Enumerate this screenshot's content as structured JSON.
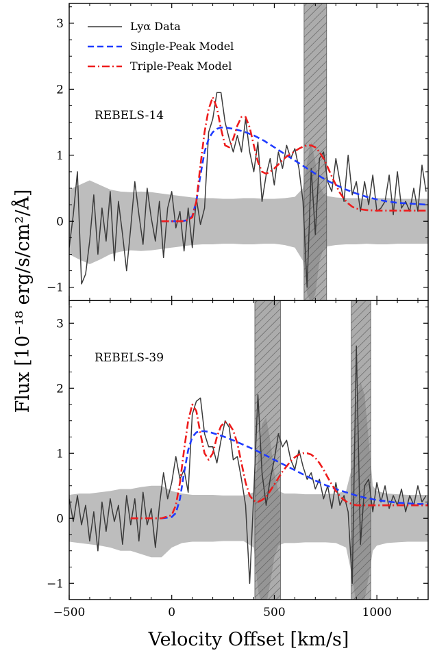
{
  "figure": {
    "ylabel": "Flux [10⁻¹⁸ erg/s/cm²/Å]",
    "xlabel": "Velocity Offset [km/s]"
  },
  "legend": [
    {
      "label": "Lyα Data",
      "color": "#3a3a3a",
      "style": "solid"
    },
    {
      "label": "Single-Peak Model",
      "color": "#1f3bff",
      "style": "dashed"
    },
    {
      "label": "Triple-Peak Model",
      "color": "#ee1c1c",
      "style": "dashdot"
    }
  ],
  "colors": {
    "data": "#3a3a3a",
    "single": "#1f3bff",
    "triple": "#ee1c1c",
    "noise_band": "#bdbdbd",
    "masked_band": "#808080"
  },
  "chart_data": [
    {
      "type": "line",
      "label": "REBELS-14",
      "xlim": [
        -500,
        1250
      ],
      "ylim": [
        -1.2,
        3.3
      ],
      "yticks": [
        -1,
        0,
        1,
        2,
        3
      ],
      "xticks": [
        -500,
        0,
        500,
        1000
      ],
      "legend_position": "top-left",
      "masked_regions": [
        [
          645,
          755
        ]
      ],
      "noise_band": {
        "x": [
          -500,
          -450,
          -400,
          -350,
          -300,
          -250,
          -200,
          -150,
          -100,
          -50,
          0,
          50,
          100,
          150,
          200,
          250,
          300,
          350,
          400,
          450,
          500,
          550,
          600,
          640,
          660,
          680,
          700,
          720,
          740,
          760,
          800,
          850,
          900,
          950,
          1000,
          1050,
          1100,
          1150,
          1200,
          1250
        ],
        "upper": [
          0.48,
          0.55,
          0.62,
          0.55,
          0.48,
          0.45,
          0.44,
          0.45,
          0.44,
          0.42,
          0.4,
          0.38,
          0.36,
          0.35,
          0.35,
          0.34,
          0.34,
          0.35,
          0.35,
          0.34,
          0.34,
          0.35,
          0.37,
          0.5,
          0.9,
          1.2,
          0.9,
          0.55,
          0.42,
          0.38,
          0.36,
          0.35,
          0.35,
          0.34,
          0.35,
          0.35,
          0.34,
          0.34,
          0.34,
          0.34
        ],
        "lower": [
          -0.5,
          -0.58,
          -0.65,
          -0.58,
          -0.5,
          -0.46,
          -0.44,
          -0.45,
          -0.44,
          -0.42,
          -0.4,
          -0.38,
          -0.36,
          -0.35,
          -0.35,
          -0.34,
          -0.34,
          -0.35,
          -0.35,
          -0.34,
          -0.34,
          -0.36,
          -0.4,
          -0.6,
          -1.1,
          -1.25,
          -1.1,
          -0.6,
          -0.42,
          -0.38,
          -0.36,
          -0.35,
          -0.35,
          -0.34,
          -0.35,
          -0.35,
          -0.34,
          -0.34,
          -0.34,
          -0.34
        ]
      },
      "series": [
        {
          "name": "Lyα Data",
          "style": "solid",
          "x": [
            -500,
            -480,
            -460,
            -440,
            -420,
            -400,
            -380,
            -360,
            -340,
            -320,
            -300,
            -280,
            -260,
            -240,
            -220,
            -200,
            -180,
            -160,
            -140,
            -120,
            -100,
            -80,
            -60,
            -40,
            -20,
            0,
            20,
            40,
            60,
            80,
            100,
            120,
            140,
            160,
            180,
            200,
            220,
            240,
            260,
            280,
            300,
            320,
            340,
            360,
            380,
            400,
            420,
            440,
            460,
            480,
            500,
            520,
            540,
            560,
            580,
            600,
            620,
            640,
            660,
            680,
            700,
            720,
            740,
            760,
            780,
            800,
            820,
            840,
            860,
            880,
            900,
            920,
            940,
            960,
            980,
            1000,
            1020,
            1040,
            1060,
            1080,
            1100,
            1120,
            1140,
            1160,
            1180,
            1200,
            1220,
            1240
          ],
          "y": [
            -0.4,
            0.1,
            0.75,
            -0.95,
            -0.8,
            -0.3,
            0.4,
            -0.5,
            0.2,
            -0.3,
            0.45,
            -0.6,
            0.3,
            -0.2,
            -0.75,
            -0.1,
            0.6,
            0.1,
            -0.35,
            0.5,
            0.05,
            -0.3,
            0.3,
            -0.55,
            0.2,
            0.45,
            -0.1,
            0.15,
            -0.45,
            0.2,
            -0.4,
            0.35,
            -0.05,
            0.2,
            1.35,
            1.55,
            1.95,
            1.95,
            1.5,
            1.25,
            1.05,
            1.3,
            1.05,
            1.55,
            1.05,
            0.75,
            1.2,
            0.3,
            0.7,
            0.95,
            0.55,
            1.05,
            0.8,
            1.15,
            0.95,
            1.1,
            0.8,
            0.3,
            -1.0,
            0.8,
            -0.2,
            0.95,
            1.05,
            0.6,
            0.45,
            0.95,
            0.6,
            0.3,
            1.0,
            0.4,
            0.6,
            0.15,
            0.6,
            0.25,
            0.7,
            0.15,
            0.2,
            0.3,
            0.7,
            0.1,
            0.75,
            0.2,
            0.3,
            0.15,
            0.5,
            0.15,
            0.85,
            0.45
          ]
        },
        {
          "name": "Single-Peak Model",
          "style": "dashed",
          "x": [
            -50,
            0,
            50,
            80,
            100,
            120,
            140,
            160,
            180,
            200,
            220,
            240,
            260,
            280,
            300,
            350,
            400,
            450,
            500,
            550,
            600,
            650,
            700,
            750,
            800,
            850,
            900,
            950,
            1000,
            1050,
            1100,
            1150,
            1200,
            1250
          ],
          "y": [
            0.0,
            0.0,
            0.0,
            0.02,
            0.08,
            0.3,
            0.7,
            1.05,
            1.25,
            1.35,
            1.4,
            1.42,
            1.42,
            1.41,
            1.4,
            1.36,
            1.3,
            1.22,
            1.12,
            1.02,
            0.92,
            0.82,
            0.72,
            0.63,
            0.55,
            0.48,
            0.42,
            0.37,
            0.33,
            0.3,
            0.28,
            0.27,
            0.26,
            0.25
          ]
        },
        {
          "name": "Triple-Peak Model",
          "style": "dashdot",
          "x": [
            -50,
            0,
            50,
            80,
            100,
            120,
            140,
            160,
            180,
            200,
            220,
            240,
            260,
            280,
            300,
            320,
            340,
            360,
            380,
            400,
            420,
            440,
            460,
            480,
            500,
            520,
            540,
            560,
            580,
            600,
            620,
            640,
            660,
            680,
            700,
            720,
            740,
            760,
            780,
            800,
            820,
            840,
            860,
            880,
            900,
            950,
            1000,
            1050,
            1100,
            1150,
            1200,
            1250
          ],
          "y": [
            0.0,
            0.0,
            0.0,
            0.02,
            0.06,
            0.3,
            0.85,
            1.35,
            1.7,
            1.88,
            1.72,
            1.4,
            1.15,
            1.12,
            1.25,
            1.45,
            1.58,
            1.58,
            1.42,
            1.15,
            0.9,
            0.75,
            0.72,
            0.75,
            0.8,
            0.86,
            0.93,
            0.98,
            1.02,
            1.06,
            1.1,
            1.13,
            1.15,
            1.15,
            1.12,
            1.05,
            0.95,
            0.82,
            0.68,
            0.55,
            0.43,
            0.34,
            0.27,
            0.22,
            0.19,
            0.17,
            0.16,
            0.16,
            0.16,
            0.16,
            0.16,
            0.16
          ]
        }
      ]
    },
    {
      "type": "line",
      "label": "REBELS-39",
      "xlim": [
        -500,
        1250
      ],
      "ylim": [
        -1.25,
        3.35
      ],
      "yticks": [
        -1,
        0,
        1,
        2,
        3
      ],
      "xticks": [
        -500,
        0,
        500,
        1000
      ],
      "masked_regions": [
        [
          405,
          530
        ],
        [
          875,
          970
        ]
      ],
      "noise_band": {
        "x": [
          -500,
          -450,
          -400,
          -350,
          -300,
          -250,
          -200,
          -150,
          -100,
          -50,
          0,
          50,
          100,
          150,
          200,
          250,
          300,
          350,
          400,
          420,
          440,
          460,
          480,
          500,
          520,
          550,
          600,
          650,
          700,
          750,
          800,
          850,
          880,
          900,
          920,
          940,
          960,
          980,
          1000,
          1050,
          1100,
          1150,
          1200,
          1250
        ],
        "upper": [
          0.36,
          0.38,
          0.38,
          0.4,
          0.42,
          0.45,
          0.45,
          0.48,
          0.5,
          0.5,
          0.42,
          0.38,
          0.36,
          0.36,
          0.36,
          0.35,
          0.35,
          0.35,
          0.4,
          0.9,
          1.45,
          1.55,
          1.2,
          0.7,
          0.42,
          0.38,
          0.38,
          0.37,
          0.37,
          0.37,
          0.38,
          0.42,
          0.8,
          1.8,
          2.1,
          1.9,
          1.2,
          0.5,
          0.42,
          0.38,
          0.37,
          0.36,
          0.36,
          0.36
        ],
        "lower": [
          -0.36,
          -0.38,
          -0.4,
          -0.42,
          -0.45,
          -0.5,
          -0.5,
          -0.55,
          -0.6,
          -0.6,
          -0.45,
          -0.38,
          -0.36,
          -0.36,
          -0.36,
          -0.35,
          -0.35,
          -0.35,
          -0.45,
          -1.1,
          -1.35,
          -1.35,
          -1.0,
          -0.6,
          -0.42,
          -0.38,
          -0.38,
          -0.37,
          -0.37,
          -0.37,
          -0.38,
          -0.45,
          -0.9,
          -1.35,
          -1.35,
          -1.25,
          -0.9,
          -0.5,
          -0.42,
          -0.38,
          -0.37,
          -0.36,
          -0.36,
          -0.36
        ]
      },
      "series": [
        {
          "name": "Lyα Data",
          "style": "solid",
          "x": [
            -500,
            -480,
            -460,
            -440,
            -420,
            -400,
            -380,
            -360,
            -340,
            -320,
            -300,
            -280,
            -260,
            -240,
            -220,
            -200,
            -180,
            -160,
            -140,
            -120,
            -100,
            -80,
            -60,
            -40,
            -20,
            0,
            20,
            40,
            60,
            80,
            100,
            120,
            140,
            160,
            180,
            200,
            220,
            240,
            260,
            280,
            300,
            320,
            340,
            360,
            380,
            400,
            420,
            440,
            460,
            480,
            500,
            520,
            540,
            560,
            580,
            600,
            620,
            640,
            660,
            680,
            700,
            720,
            740,
            760,
            780,
            800,
            820,
            840,
            860,
            880,
            900,
            920,
            940,
            960,
            980,
            1000,
            1020,
            1040,
            1060,
            1080,
            1100,
            1120,
            1140,
            1160,
            1180,
            1200,
            1220,
            1240
          ],
          "y": [
            0.3,
            -0.05,
            0.35,
            -0.1,
            0.2,
            -0.35,
            0.1,
            -0.5,
            0.25,
            -0.2,
            0.3,
            -0.05,
            0.2,
            -0.4,
            0.35,
            -0.1,
            0.3,
            -0.35,
            0.4,
            -0.1,
            0.15,
            -0.45,
            0.2,
            0.7,
            0.3,
            0.55,
            0.95,
            0.6,
            0.75,
            0.4,
            1.6,
            1.8,
            1.85,
            1.3,
            1.1,
            1.1,
            0.85,
            1.2,
            1.5,
            1.4,
            0.9,
            0.95,
            0.6,
            0.2,
            -1.0,
            0.4,
            1.9,
            0.7,
            0.2,
            0.6,
            0.9,
            1.3,
            1.1,
            1.2,
            0.9,
            0.75,
            1.05,
            0.8,
            0.6,
            0.7,
            0.45,
            0.6,
            0.3,
            0.5,
            0.15,
            0.55,
            0.2,
            0.35,
            0.1,
            -1.0,
            2.65,
            -0.4,
            0.5,
            0.6,
            0.1,
            0.55,
            0.25,
            0.5,
            0.15,
            0.35,
            0.2,
            0.45,
            0.1,
            0.35,
            0.2,
            0.5,
            0.25,
            0.35
          ]
        },
        {
          "name": "Single-Peak Model",
          "style": "dashed",
          "x": [
            -50,
            0,
            20,
            40,
            60,
            80,
            100,
            120,
            140,
            160,
            180,
            200,
            250,
            300,
            350,
            400,
            450,
            500,
            550,
            600,
            650,
            700,
            750,
            800,
            850,
            900,
            950,
            1000,
            1050,
            1100,
            1150,
            1200,
            1250
          ],
          "y": [
            0.0,
            0.02,
            0.08,
            0.3,
            0.7,
            1.05,
            1.25,
            1.32,
            1.34,
            1.34,
            1.33,
            1.31,
            1.26,
            1.2,
            1.13,
            1.06,
            0.98,
            0.9,
            0.82,
            0.74,
            0.66,
            0.58,
            0.51,
            0.45,
            0.4,
            0.35,
            0.31,
            0.28,
            0.26,
            0.24,
            0.23,
            0.22,
            0.22
          ]
        },
        {
          "name": "Triple-Peak Model",
          "style": "dashdot",
          "x": [
            -200,
            -150,
            -100,
            -50,
            0,
            20,
            40,
            60,
            80,
            100,
            120,
            140,
            160,
            180,
            200,
            220,
            240,
            260,
            280,
            300,
            320,
            340,
            360,
            380,
            400,
            420,
            440,
            460,
            480,
            500,
            520,
            540,
            560,
            580,
            600,
            620,
            640,
            660,
            680,
            700,
            720,
            740,
            760,
            780,
            800,
            820,
            840,
            860,
            880,
            900,
            950,
            1000,
            1050,
            1100,
            1150,
            1200,
            1250
          ],
          "y": [
            0.0,
            0.0,
            0.0,
            0.0,
            0.05,
            0.2,
            0.55,
            1.05,
            1.5,
            1.75,
            1.65,
            1.3,
            1.0,
            0.9,
            1.0,
            1.25,
            1.42,
            1.48,
            1.45,
            1.35,
            1.15,
            0.85,
            0.55,
            0.35,
            0.27,
            0.25,
            0.28,
            0.33,
            0.42,
            0.52,
            0.62,
            0.72,
            0.8,
            0.88,
            0.94,
            0.98,
            1.0,
            1.0,
            0.98,
            0.93,
            0.85,
            0.75,
            0.63,
            0.52,
            0.42,
            0.34,
            0.28,
            0.24,
            0.22,
            0.2,
            0.2,
            0.2,
            0.2,
            0.2,
            0.2,
            0.2,
            0.2
          ]
        }
      ]
    }
  ]
}
